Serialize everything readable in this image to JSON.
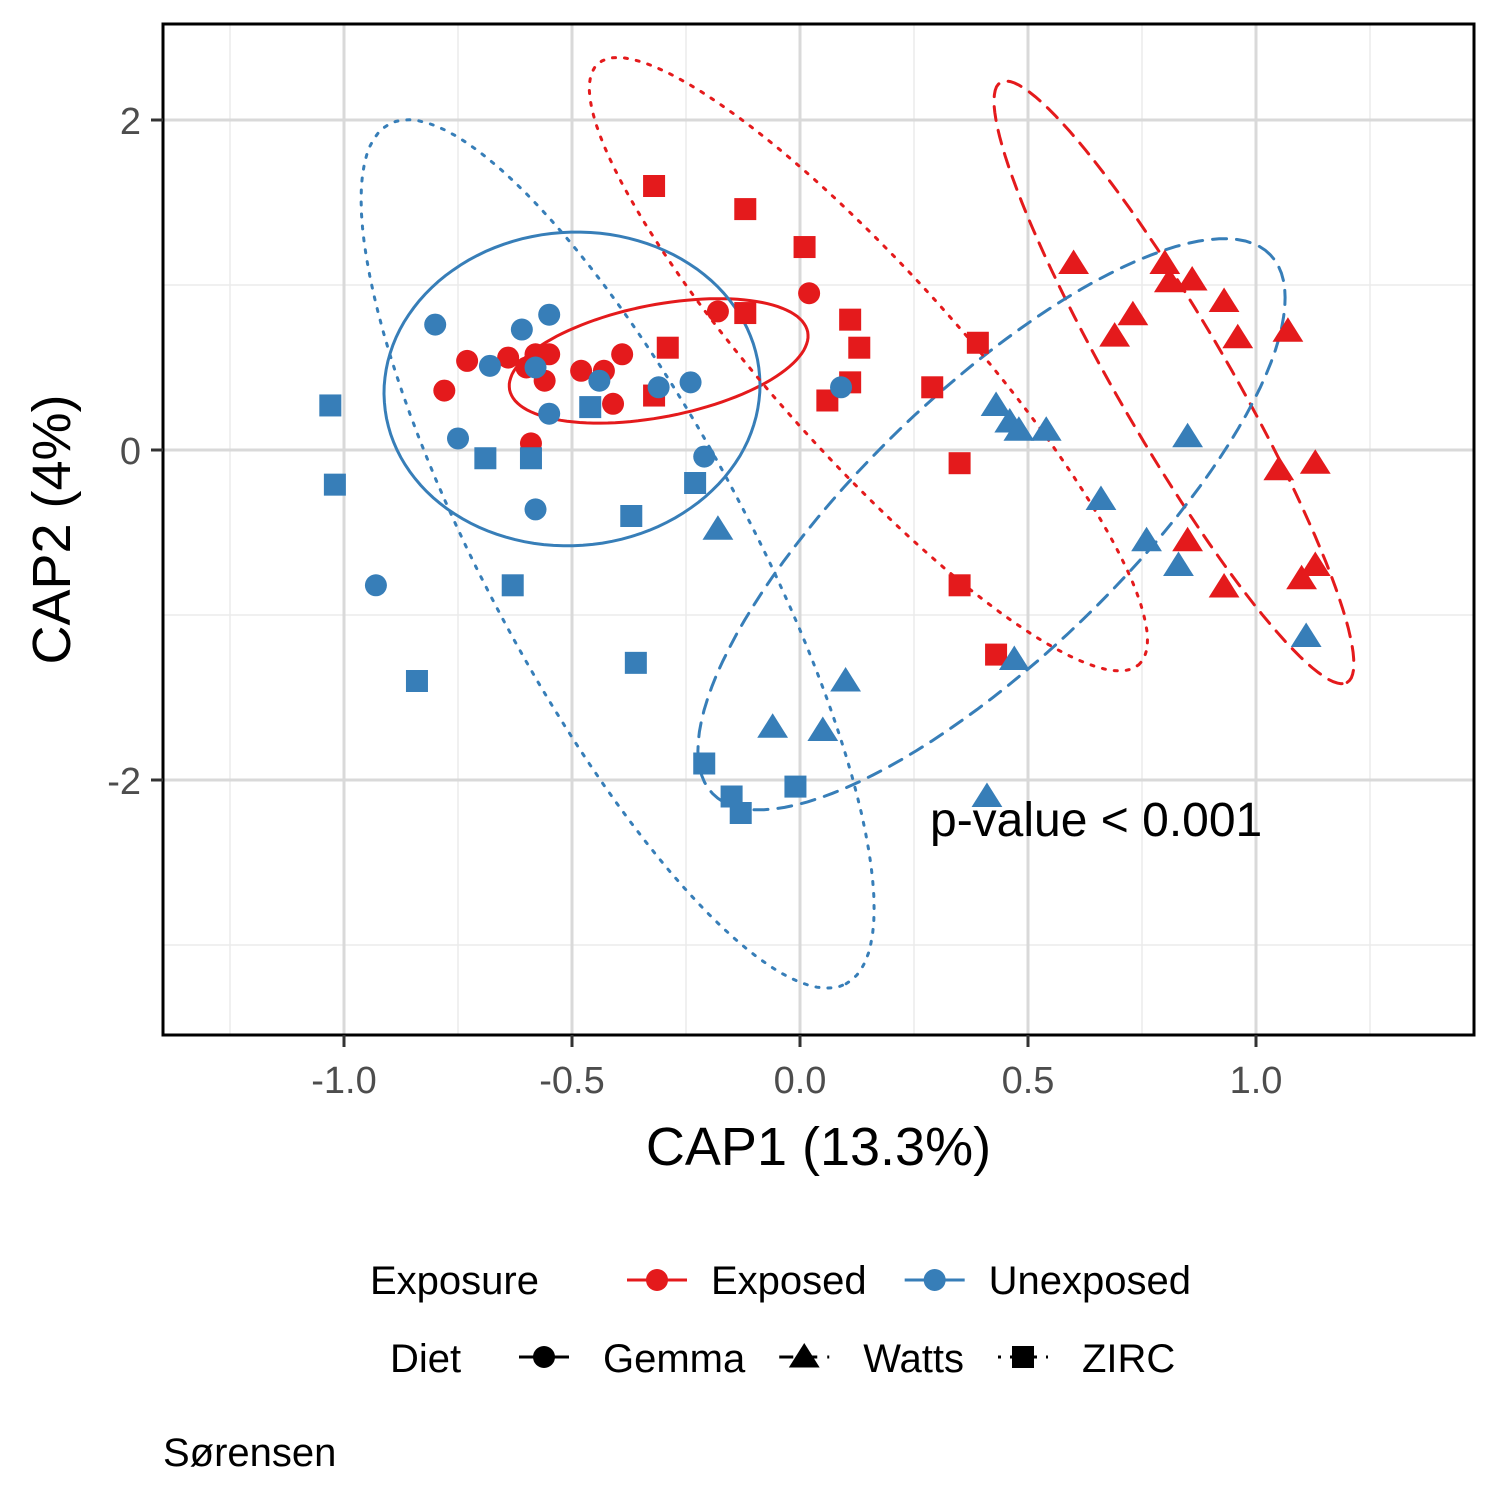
{
  "chart_data": {
    "type": "scatter",
    "xlabel": "CAP1 (13.3%)",
    "ylabel": "CAP2 (4%)",
    "xlim": [
      -1.4,
      1.5
    ],
    "ylim": [
      -3.55,
      2.6
    ],
    "x_ticks": [
      -1.0,
      -0.5,
      0.0,
      0.5,
      1.0
    ],
    "x_tick_labels": [
      "-1.0",
      "-0.5",
      "0.0",
      "0.5",
      "1.0"
    ],
    "y_ticks": [
      2,
      0,
      -2
    ],
    "y_tick_labels": [
      "2",
      "0",
      "-2"
    ],
    "grid": true,
    "annotation": "p-value < 0.001",
    "caption": "Sørensen",
    "colors": {
      "Exposed": "#E41A1C",
      "Unexposed": "#377EB8"
    },
    "legend": {
      "position": "bottom",
      "exposure_title": "Exposure",
      "exposure_items": [
        "Exposed",
        "Unexposed"
      ],
      "diet_title": "Diet",
      "diet_items": [
        {
          "name": "Gemma",
          "shape": "circle"
        },
        {
          "name": "Watts",
          "shape": "triangle"
        },
        {
          "name": "ZIRC",
          "shape": "square"
        }
      ]
    },
    "series": [
      {
        "exposure": "Exposed",
        "diet": "Gemma",
        "points": [
          [
            -0.58,
            0.58
          ],
          [
            -0.64,
            0.56
          ],
          [
            -0.6,
            0.5
          ],
          [
            -0.55,
            0.58
          ],
          [
            -0.73,
            0.54
          ],
          [
            -0.78,
            0.36
          ],
          [
            -0.48,
            0.48
          ],
          [
            -0.43,
            0.48
          ],
          [
            -0.39,
            0.58
          ],
          [
            -0.41,
            0.28
          ],
          [
            -0.56,
            0.42
          ],
          [
            -0.59,
            0.04
          ],
          [
            -0.18,
            0.84
          ],
          [
            0.02,
            0.95
          ]
        ]
      },
      {
        "exposure": "Exposed",
        "diet": "Watts",
        "points": [
          [
            0.6,
            1.13
          ],
          [
            0.8,
            1.13
          ],
          [
            0.81,
            1.02
          ],
          [
            0.86,
            1.03
          ],
          [
            0.93,
            0.9
          ],
          [
            0.73,
            0.82
          ],
          [
            0.69,
            0.69
          ],
          [
            0.96,
            0.68
          ],
          [
            1.07,
            0.72
          ],
          [
            1.05,
            -0.12
          ],
          [
            1.13,
            -0.08
          ],
          [
            0.85,
            -0.55
          ],
          [
            1.13,
            -0.7
          ],
          [
            1.1,
            -0.78
          ],
          [
            0.93,
            -0.83
          ]
        ]
      },
      {
        "exposure": "Exposed",
        "diet": "ZIRC",
        "points": [
          [
            -0.32,
            1.6
          ],
          [
            -0.12,
            1.46
          ],
          [
            0.01,
            1.23
          ],
          [
            -0.12,
            0.83
          ],
          [
            0.11,
            0.79
          ],
          [
            -0.29,
            0.62
          ],
          [
            0.13,
            0.62
          ],
          [
            0.11,
            0.41
          ],
          [
            -0.32,
            0.33
          ],
          [
            0.06,
            0.3
          ],
          [
            0.29,
            0.38
          ],
          [
            0.39,
            0.65
          ],
          [
            0.35,
            -0.08
          ],
          [
            0.35,
            -0.82
          ],
          [
            0.43,
            -1.24
          ]
        ]
      },
      {
        "exposure": "Unexposed",
        "diet": "Gemma",
        "points": [
          [
            -0.8,
            0.76
          ],
          [
            -0.61,
            0.73
          ],
          [
            -0.55,
            0.82
          ],
          [
            -0.68,
            0.51
          ],
          [
            -0.58,
            0.5
          ],
          [
            -0.44,
            0.42
          ],
          [
            -0.31,
            0.38
          ],
          [
            -0.24,
            0.41
          ],
          [
            -0.55,
            0.22
          ],
          [
            -0.75,
            0.07
          ],
          [
            -0.21,
            -0.04
          ],
          [
            -0.58,
            -0.36
          ],
          [
            -0.93,
            -0.82
          ],
          [
            0.09,
            0.38
          ]
        ]
      },
      {
        "exposure": "Unexposed",
        "diet": "Watts",
        "points": [
          [
            0.43,
            0.27
          ],
          [
            0.46,
            0.17
          ],
          [
            0.48,
            0.12
          ],
          [
            0.54,
            0.12
          ],
          [
            0.85,
            0.08
          ],
          [
            0.66,
            -0.3
          ],
          [
            0.76,
            -0.55
          ],
          [
            0.83,
            -0.7
          ],
          [
            1.11,
            -1.13
          ],
          [
            -0.18,
            -0.48
          ],
          [
            0.47,
            -1.27
          ],
          [
            0.1,
            -1.4
          ],
          [
            -0.06,
            -1.68
          ],
          [
            0.05,
            -1.7
          ],
          [
            0.41,
            -2.1
          ]
        ]
      },
      {
        "exposure": "Unexposed",
        "diet": "ZIRC",
        "points": [
          [
            -1.03,
            0.27
          ],
          [
            -1.02,
            -0.21
          ],
          [
            -0.69,
            -0.05
          ],
          [
            -0.59,
            -0.05
          ],
          [
            -0.46,
            0.26
          ],
          [
            -0.37,
            -0.4
          ],
          [
            -0.23,
            -0.2
          ],
          [
            -0.63,
            -0.82
          ],
          [
            -0.84,
            -1.4
          ],
          [
            -0.36,
            -1.29
          ],
          [
            -0.21,
            -1.9
          ],
          [
            -0.15,
            -2.1
          ],
          [
            -0.13,
            -2.2
          ],
          [
            -0.01,
            -2.04
          ]
        ]
      }
    ],
    "ellipses": [
      {
        "exposure": "Exposed",
        "diet": "Gemma",
        "linetype": "solid",
        "center": [
          -0.31,
          0.54
        ],
        "semi_axes": [
          0.92,
          0.34
        ],
        "angle_deg": 11
      },
      {
        "exposure": "Unexposed",
        "diet": "Gemma",
        "linetype": "solid",
        "center": [
          -0.5,
          0.37
        ],
        "semi_axes": [
          1.14,
          0.95
        ],
        "angle_deg": 4
      },
      {
        "exposure": "Exposed",
        "diet": "Watts",
        "linetype": "dashed",
        "center": [
          0.82,
          0.41
        ],
        "semi_axes": [
          2.1,
          0.34
        ],
        "angle_deg": -60
      },
      {
        "exposure": "Unexposed",
        "diet": "Watts",
        "linetype": "dashed",
        "center": [
          0.42,
          -0.45
        ],
        "semi_axes": [
          2.35,
          0.8
        ],
        "angle_deg": 44
      },
      {
        "exposure": "Exposed",
        "diet": "ZIRC",
        "linetype": "dotted",
        "center": [
          0.15,
          0.52
        ],
        "semi_axes": [
          2.45,
          0.56
        ],
        "angle_deg": -48
      },
      {
        "exposure": "Unexposed",
        "diet": "ZIRC",
        "linetype": "dotted",
        "center": [
          -0.4,
          -0.63
        ],
        "semi_axes": [
          2.95,
          0.8
        ],
        "angle_deg": -62
      }
    ]
  }
}
